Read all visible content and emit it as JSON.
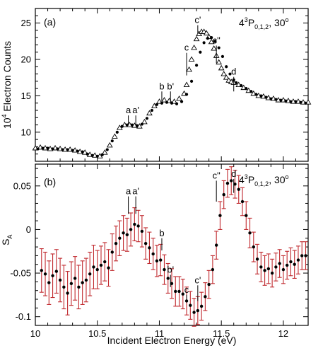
{
  "chart_data": [
    {
      "type": "scatter",
      "panel_label": "(a)",
      "title_main": "4",
      "title_sup": "3",
      "title_p": "P",
      "title_sub": "0,1,2",
      "title_rest": ", 30",
      "title_deg": "o",
      "xlabel": "",
      "ylabel_pre": "10",
      "ylabel_sup": "4",
      "ylabel_post": " Electron Counts",
      "xlim": [
        10.0,
        12.2
      ],
      "ylim": [
        6,
        27
      ],
      "yticks": [
        10,
        15,
        20,
        25
      ],
      "ytick_labels": [
        "10",
        "15",
        "20",
        "25"
      ],
      "grid": false,
      "annotations": [
        {
          "text": "a",
          "x": 10.75,
          "y_line_top": 12.3,
          "y_line_bottom": 11.0
        },
        {
          "text": "a'",
          "x": 10.81,
          "y_line_top": 12.3,
          "y_line_bottom": 11.0
        },
        {
          "text": "b",
          "x": 11.02,
          "y_line_top": 15.6,
          "y_line_bottom": 14.2
        },
        {
          "text": "b'",
          "x": 11.09,
          "y_line_top": 15.6,
          "y_line_bottom": 14.0
        },
        {
          "text": "c",
          "x": 11.22,
          "y_line_top": 20.9,
          "y_line_bottom": 17.8
        },
        {
          "text": "c'",
          "x": 11.31,
          "y_line_top": 24.7,
          "y_line_bottom": 23.6
        },
        {
          "text": "c\"",
          "x": 11.46,
          "y_line_top": 21.9,
          "y_line_bottom": 19.5
        },
        {
          "text": "d",
          "x": 11.6,
          "y_line_top": 17.6,
          "y_line_bottom": 15.6
        }
      ],
      "series": [
        {
          "marker": "triangle-open",
          "x": [
            10.0,
            10.04,
            10.08,
            10.12,
            10.16,
            10.2,
            10.24,
            10.28,
            10.32,
            10.36,
            10.4,
            10.44,
            10.48,
            10.52,
            10.56,
            10.6,
            10.64,
            10.68,
            10.72,
            10.76,
            10.8,
            10.84,
            10.88,
            10.92,
            10.96,
            11.0,
            11.04,
            11.08,
            11.12,
            11.16,
            11.2,
            11.22,
            11.24,
            11.26,
            11.28,
            11.3,
            11.32,
            11.34,
            11.36,
            11.38,
            11.4,
            11.42,
            11.44,
            11.46,
            11.48,
            11.5,
            11.52,
            11.54,
            11.56,
            11.58,
            11.6,
            11.64,
            11.68,
            11.72,
            11.76,
            11.8,
            11.84,
            11.88,
            11.92,
            11.96,
            12.0,
            12.04,
            12.08,
            12.12,
            12.16,
            12.2
          ],
          "y": [
            7.8,
            7.9,
            7.8,
            7.7,
            7.8,
            7.7,
            7.6,
            7.6,
            7.5,
            7.3,
            7.2,
            6.9,
            6.8,
            6.7,
            7.2,
            8.2,
            9.4,
            10.6,
            11.0,
            11.0,
            10.9,
            10.8,
            11.4,
            12.6,
            13.6,
            14.2,
            14.4,
            14.3,
            14.2,
            14.6,
            15.3,
            16.5,
            18.6,
            20.0,
            21.6,
            22.8,
            23.5,
            23.8,
            23.8,
            23.6,
            23.1,
            22.4,
            21.5,
            20.5,
            19.6,
            18.8,
            18.0,
            17.5,
            17.1,
            16.9,
            16.8,
            16.5,
            16.1,
            15.7,
            15.3,
            15.0,
            14.9,
            14.7,
            14.6,
            14.4,
            14.4,
            14.3,
            14.2,
            14.2,
            14.1,
            14.1
          ]
        },
        {
          "marker": "circle-filled",
          "x": [
            10.02,
            10.06,
            10.1,
            10.14,
            10.18,
            10.22,
            10.26,
            10.3,
            10.34,
            10.38,
            10.42,
            10.46,
            10.5,
            10.54,
            10.58,
            10.62,
            10.66,
            10.7,
            10.74,
            10.78,
            10.82,
            10.86,
            10.9,
            10.94,
            10.98,
            11.02,
            11.06,
            11.1,
            11.14,
            11.18,
            11.22,
            11.26,
            11.3,
            11.33,
            11.36,
            11.39,
            11.42,
            11.45,
            11.48,
            11.51,
            11.54,
            11.57,
            11.6,
            11.62,
            11.66,
            11.7,
            11.74,
            11.78,
            11.82,
            11.86,
            11.9,
            11.94,
            11.98,
            12.02,
            12.06,
            12.1,
            12.14,
            12.18
          ],
          "y": [
            7.7,
            7.8,
            7.8,
            7.7,
            7.7,
            7.6,
            7.6,
            7.5,
            7.4,
            7.3,
            7.0,
            6.8,
            6.7,
            6.9,
            7.6,
            8.8,
            10.0,
            10.8,
            11.0,
            11.0,
            10.9,
            11.1,
            11.9,
            13.0,
            13.8,
            14.0,
            14.1,
            14.0,
            13.9,
            14.2,
            15.2,
            17.0,
            19.2,
            21.0,
            22.3,
            22.9,
            23.0,
            22.5,
            21.6,
            20.4,
            19.0,
            18.0,
            17.2,
            16.8,
            16.4,
            16.0,
            15.6,
            15.2,
            15.0,
            14.8,
            14.6,
            14.5,
            14.4,
            14.3,
            14.2,
            14.2,
            14.1,
            14.0
          ]
        }
      ]
    },
    {
      "type": "scatter",
      "panel_label": "(b)",
      "title_main": "4",
      "title_sup": "3",
      "title_p": "P",
      "title_sub": "0,1,2",
      "title_rest": ", 30",
      "title_deg": "o",
      "xlabel": "Incident Electron Energy (eV)",
      "ylabel_pre": "S",
      "ylabel_sub": "A",
      "xlim": [
        10.0,
        12.2
      ],
      "ylim": [
        -0.11,
        0.075
      ],
      "xticks": [
        10,
        10.5,
        11,
        11.5,
        12
      ],
      "xtick_labels": [
        "10",
        "10.5",
        "11",
        "11.5",
        "12"
      ],
      "yticks": [
        -0.1,
        -0.05,
        0,
        0.05
      ],
      "ytick_labels": [
        "-0.1",
        "-0.05",
        "0",
        "0.05"
      ],
      "grid": false,
      "annotations": [
        {
          "text": "a",
          "x": 10.75,
          "y_line_top": 0.038,
          "y_line_bottom": 0.018
        },
        {
          "text": "a'",
          "x": 10.81,
          "y_line_top": 0.038,
          "y_line_bottom": 0.018
        },
        {
          "text": "b",
          "x": 11.02,
          "y_line_top": -0.01,
          "y_line_bottom": -0.024
        },
        {
          "text": "b'",
          "x": 11.09,
          "y_line_top": -0.052,
          "y_line_bottom": -0.066
        },
        {
          "text": "c",
          "x": 11.22,
          "y_line_top": -0.075,
          "y_line_bottom": -0.082
        },
        {
          "text": "c'",
          "x": 11.31,
          "y_line_top": -0.064,
          "y_line_bottom": -0.082
        },
        {
          "text": "c\"",
          "x": 11.46,
          "y_line_top": 0.056,
          "y_line_bottom": 0.032
        },
        {
          "text": "d",
          "x": 11.6,
          "y_line_top": 0.058,
          "y_line_bottom": 0.042
        }
      ],
      "series": [
        {
          "marker": "circle-filled",
          "error_color": "#c0282d",
          "x": [
            10.05,
            10.08,
            10.11,
            10.14,
            10.17,
            10.2,
            10.23,
            10.26,
            10.29,
            10.32,
            10.35,
            10.38,
            10.41,
            10.44,
            10.47,
            10.5,
            10.53,
            10.56,
            10.59,
            10.62,
            10.65,
            10.68,
            10.71,
            10.74,
            10.77,
            10.8,
            10.83,
            10.86,
            10.89,
            10.92,
            10.95,
            10.98,
            11.01,
            11.04,
            11.07,
            11.1,
            11.13,
            11.16,
            11.19,
            11.22,
            11.25,
            11.28,
            11.31,
            11.34,
            11.37,
            11.4,
            11.43,
            11.46,
            11.49,
            11.52,
            11.55,
            11.58,
            11.61,
            11.64,
            11.67,
            11.7,
            11.73,
            11.76,
            11.79,
            11.82,
            11.85,
            11.88,
            11.91,
            11.94,
            11.97,
            12.0,
            12.03,
            12.06,
            12.09,
            12.12,
            12.15,
            12.18
          ],
          "y": [
            -0.047,
            -0.051,
            -0.061,
            -0.053,
            -0.048,
            -0.058,
            -0.066,
            -0.073,
            -0.062,
            -0.056,
            -0.066,
            -0.061,
            -0.058,
            -0.051,
            -0.043,
            -0.046,
            -0.041,
            -0.037,
            -0.044,
            -0.026,
            -0.016,
            -0.01,
            -0.004,
            -0.006,
            0.0,
            0.006,
            0.004,
            -0.002,
            -0.016,
            -0.021,
            -0.028,
            -0.036,
            -0.035,
            -0.046,
            -0.056,
            -0.062,
            -0.071,
            -0.071,
            -0.074,
            -0.082,
            -0.087,
            -0.095,
            -0.093,
            -0.088,
            -0.077,
            -0.063,
            -0.046,
            -0.018,
            0.016,
            0.04,
            0.053,
            0.056,
            0.052,
            0.046,
            0.032,
            0.016,
            -0.004,
            -0.02,
            -0.034,
            -0.043,
            -0.047,
            -0.045,
            -0.05,
            -0.043,
            -0.039,
            -0.046,
            -0.041,
            -0.037,
            -0.04,
            -0.035,
            -0.03,
            -0.03
          ],
          "err": [
            0.025,
            0.025,
            0.025,
            0.025,
            0.025,
            0.025,
            0.025,
            0.025,
            0.025,
            0.025,
            0.025,
            0.025,
            0.025,
            0.025,
            0.025,
            0.022,
            0.022,
            0.022,
            0.021,
            0.021,
            0.02,
            0.02,
            0.02,
            0.019,
            0.019,
            0.019,
            0.018,
            0.018,
            0.018,
            0.018,
            0.018,
            0.018,
            0.018,
            0.017,
            0.017,
            0.017,
            0.017,
            0.017,
            0.017,
            0.016,
            0.016,
            0.016,
            0.016,
            0.016,
            0.016,
            0.016,
            0.016,
            0.016,
            0.016,
            0.016,
            0.016,
            0.016,
            0.016,
            0.016,
            0.016,
            0.016,
            0.017,
            0.017,
            0.017,
            0.017,
            0.017,
            0.017,
            0.016,
            0.016,
            0.016,
            0.016,
            0.016,
            0.016,
            0.016,
            0.016,
            0.016,
            0.016
          ]
        }
      ]
    }
  ]
}
